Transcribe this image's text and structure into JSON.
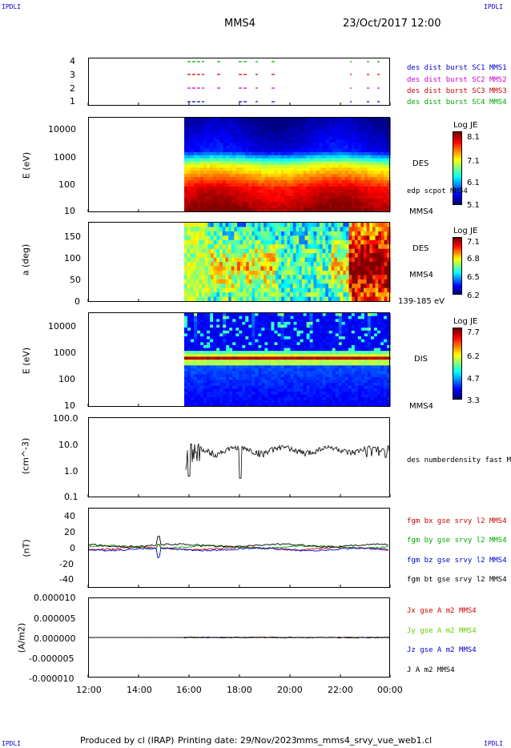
{
  "corners": {
    "tl": "IPDLI",
    "tr": "IPDLI",
    "bl": "IPDLI",
    "br": "IPDLI"
  },
  "header": {
    "spacecraft": "MMS4",
    "datetime": "23/Oct/2017 12:00"
  },
  "footer": {
    "produced": "Produced by cl (IRAP)",
    "printing": "Printing date: 29/Nov/2023",
    "file": "mms_mms4_srvy_vue_web1.cl"
  },
  "colors": {
    "red": "#cc0000",
    "green": "#00aa00",
    "blue": "#0000cc",
    "magenta": "#cc00cc",
    "black": "#000000",
    "lightgreen": "#66cc00"
  },
  "chart_data": [
    {
      "type": "scatter",
      "panel": "burst",
      "yticks": [
        "4",
        "3",
        "2",
        "1"
      ],
      "legend": [
        {
          "text": "des dist burst SC1 MMS1",
          "color": "#0000cc"
        },
        {
          "text": "des dist burst SC2 MMS2",
          "color": "#cc00cc"
        },
        {
          "text": "des dist burst SC3 MMS3",
          "color": "#cc0000"
        },
        {
          "text": "des dist burst SC4 MMS4",
          "color": "#00aa00"
        }
      ]
    },
    {
      "type": "heatmap",
      "panel": "des-energy",
      "ylabel": "E (eV)",
      "yticks": [
        "10000",
        "1000",
        "100",
        "10"
      ],
      "side_label": "DES",
      "side_label2": "edp scpot MMS4",
      "bottom_label": "MMS4",
      "colorbar": {
        "title": "Log JE",
        "ticks": [
          "8.1",
          "7.1",
          "6.1",
          "5.1"
        ]
      }
    },
    {
      "type": "heatmap",
      "panel": "des-pitch",
      "ylabel": "a (deg)",
      "yticks": [
        "150",
        "100",
        "50",
        "0"
      ],
      "side_label": "DES",
      "side_label2": "MMS4",
      "bottom_label": "139-185 eV",
      "colorbar": {
        "title": "Log JE",
        "ticks": [
          "7.1",
          "6.8",
          "6.5",
          "6.2"
        ]
      }
    },
    {
      "type": "heatmap",
      "panel": "dis-energy",
      "ylabel": "E (eV)",
      "yticks": [
        "10000",
        "1000",
        "100",
        "10"
      ],
      "side_label": "DIS",
      "bottom_label": "MMS4",
      "colorbar": {
        "title": "Log JE",
        "ticks": [
          "7.7",
          "6.2",
          "4.7",
          "3.3"
        ]
      }
    },
    {
      "type": "line",
      "panel": "density",
      "ylabel": "(cm^-3)",
      "yticks": [
        "100.0",
        "10.0",
        "1.0",
        "0.1"
      ],
      "series": [
        {
          "name": "des numberdensity fast M",
          "color": "#000000"
        }
      ]
    },
    {
      "type": "line",
      "panel": "bfield",
      "ylabel": "(nT)",
      "yticks": [
        "40",
        "20",
        "0",
        "-20",
        "-40"
      ],
      "ylim": [
        -50,
        50
      ],
      "series": [
        {
          "name": "fgm bx gse srvy l2 MMS4",
          "color": "#cc0000"
        },
        {
          "name": "fgm by gse srvy l2 MMS4",
          "color": "#00aa00"
        },
        {
          "name": "fgm bz gse srvy l2 MMS4",
          "color": "#0000cc"
        },
        {
          "name": "fgm bt gse srvy l2 MMS4",
          "color": "#000000"
        }
      ]
    },
    {
      "type": "line",
      "panel": "current",
      "ylabel": "(A/m2)",
      "yticks": [
        "0.000010",
        "0.000005",
        "0.000000",
        "-0.000005",
        "-0.000010"
      ],
      "ylim": [
        -1e-05,
        1e-05
      ],
      "series": [
        {
          "name": "Jx gse A m2 MMS4",
          "color": "#cc0000"
        },
        {
          "name": "Jy gse A m2 MMS4",
          "color": "#66cc00"
        },
        {
          "name": "Jz gse A m2 MMS4",
          "color": "#0000cc"
        },
        {
          "name": "J A m2 MMS4",
          "color": "#000000"
        }
      ]
    }
  ],
  "xaxis": {
    "ticks": [
      "12:00",
      "14:00",
      "16:00",
      "18:00",
      "20:00",
      "22:00",
      "00:00"
    ]
  }
}
